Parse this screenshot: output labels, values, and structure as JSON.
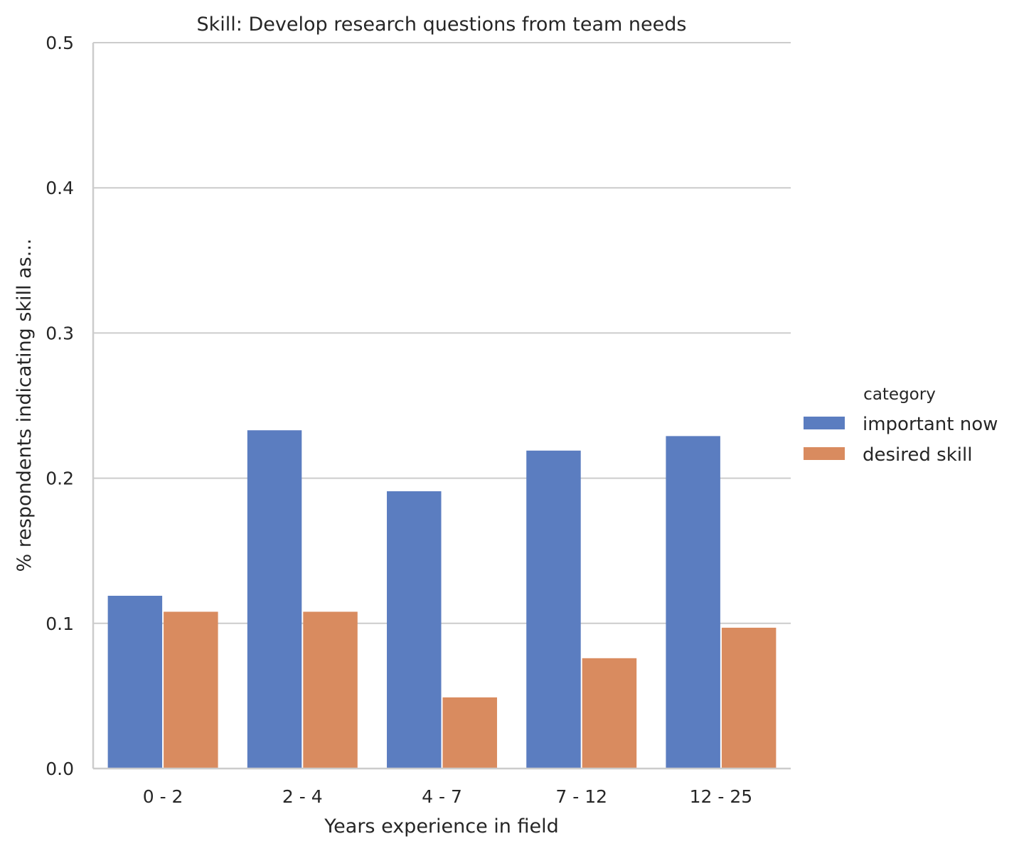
{
  "chart_data": {
    "type": "bar",
    "title": "Skill: Develop research questions from team needs",
    "xlabel": "Years experience in field",
    "ylabel": "% respondents indicating skill as...",
    "categories": [
      "0 - 2",
      "2 - 4",
      "4 - 7",
      "7 - 12",
      "12 - 25"
    ],
    "series": [
      {
        "name": "important now",
        "color": "#5b7dc0",
        "values": [
          0.119,
          0.233,
          0.191,
          0.219,
          0.229
        ]
      },
      {
        "name": "desired skill",
        "color": "#d98b5f",
        "values": [
          0.108,
          0.108,
          0.049,
          0.076,
          0.097
        ]
      }
    ],
    "ylim": [
      0,
      0.5
    ],
    "yticks": [
      "0.0",
      "0.1",
      "0.2",
      "0.3",
      "0.4",
      "0.5"
    ],
    "grid": "y",
    "legend": {
      "title": "category",
      "placement": "right"
    }
  }
}
